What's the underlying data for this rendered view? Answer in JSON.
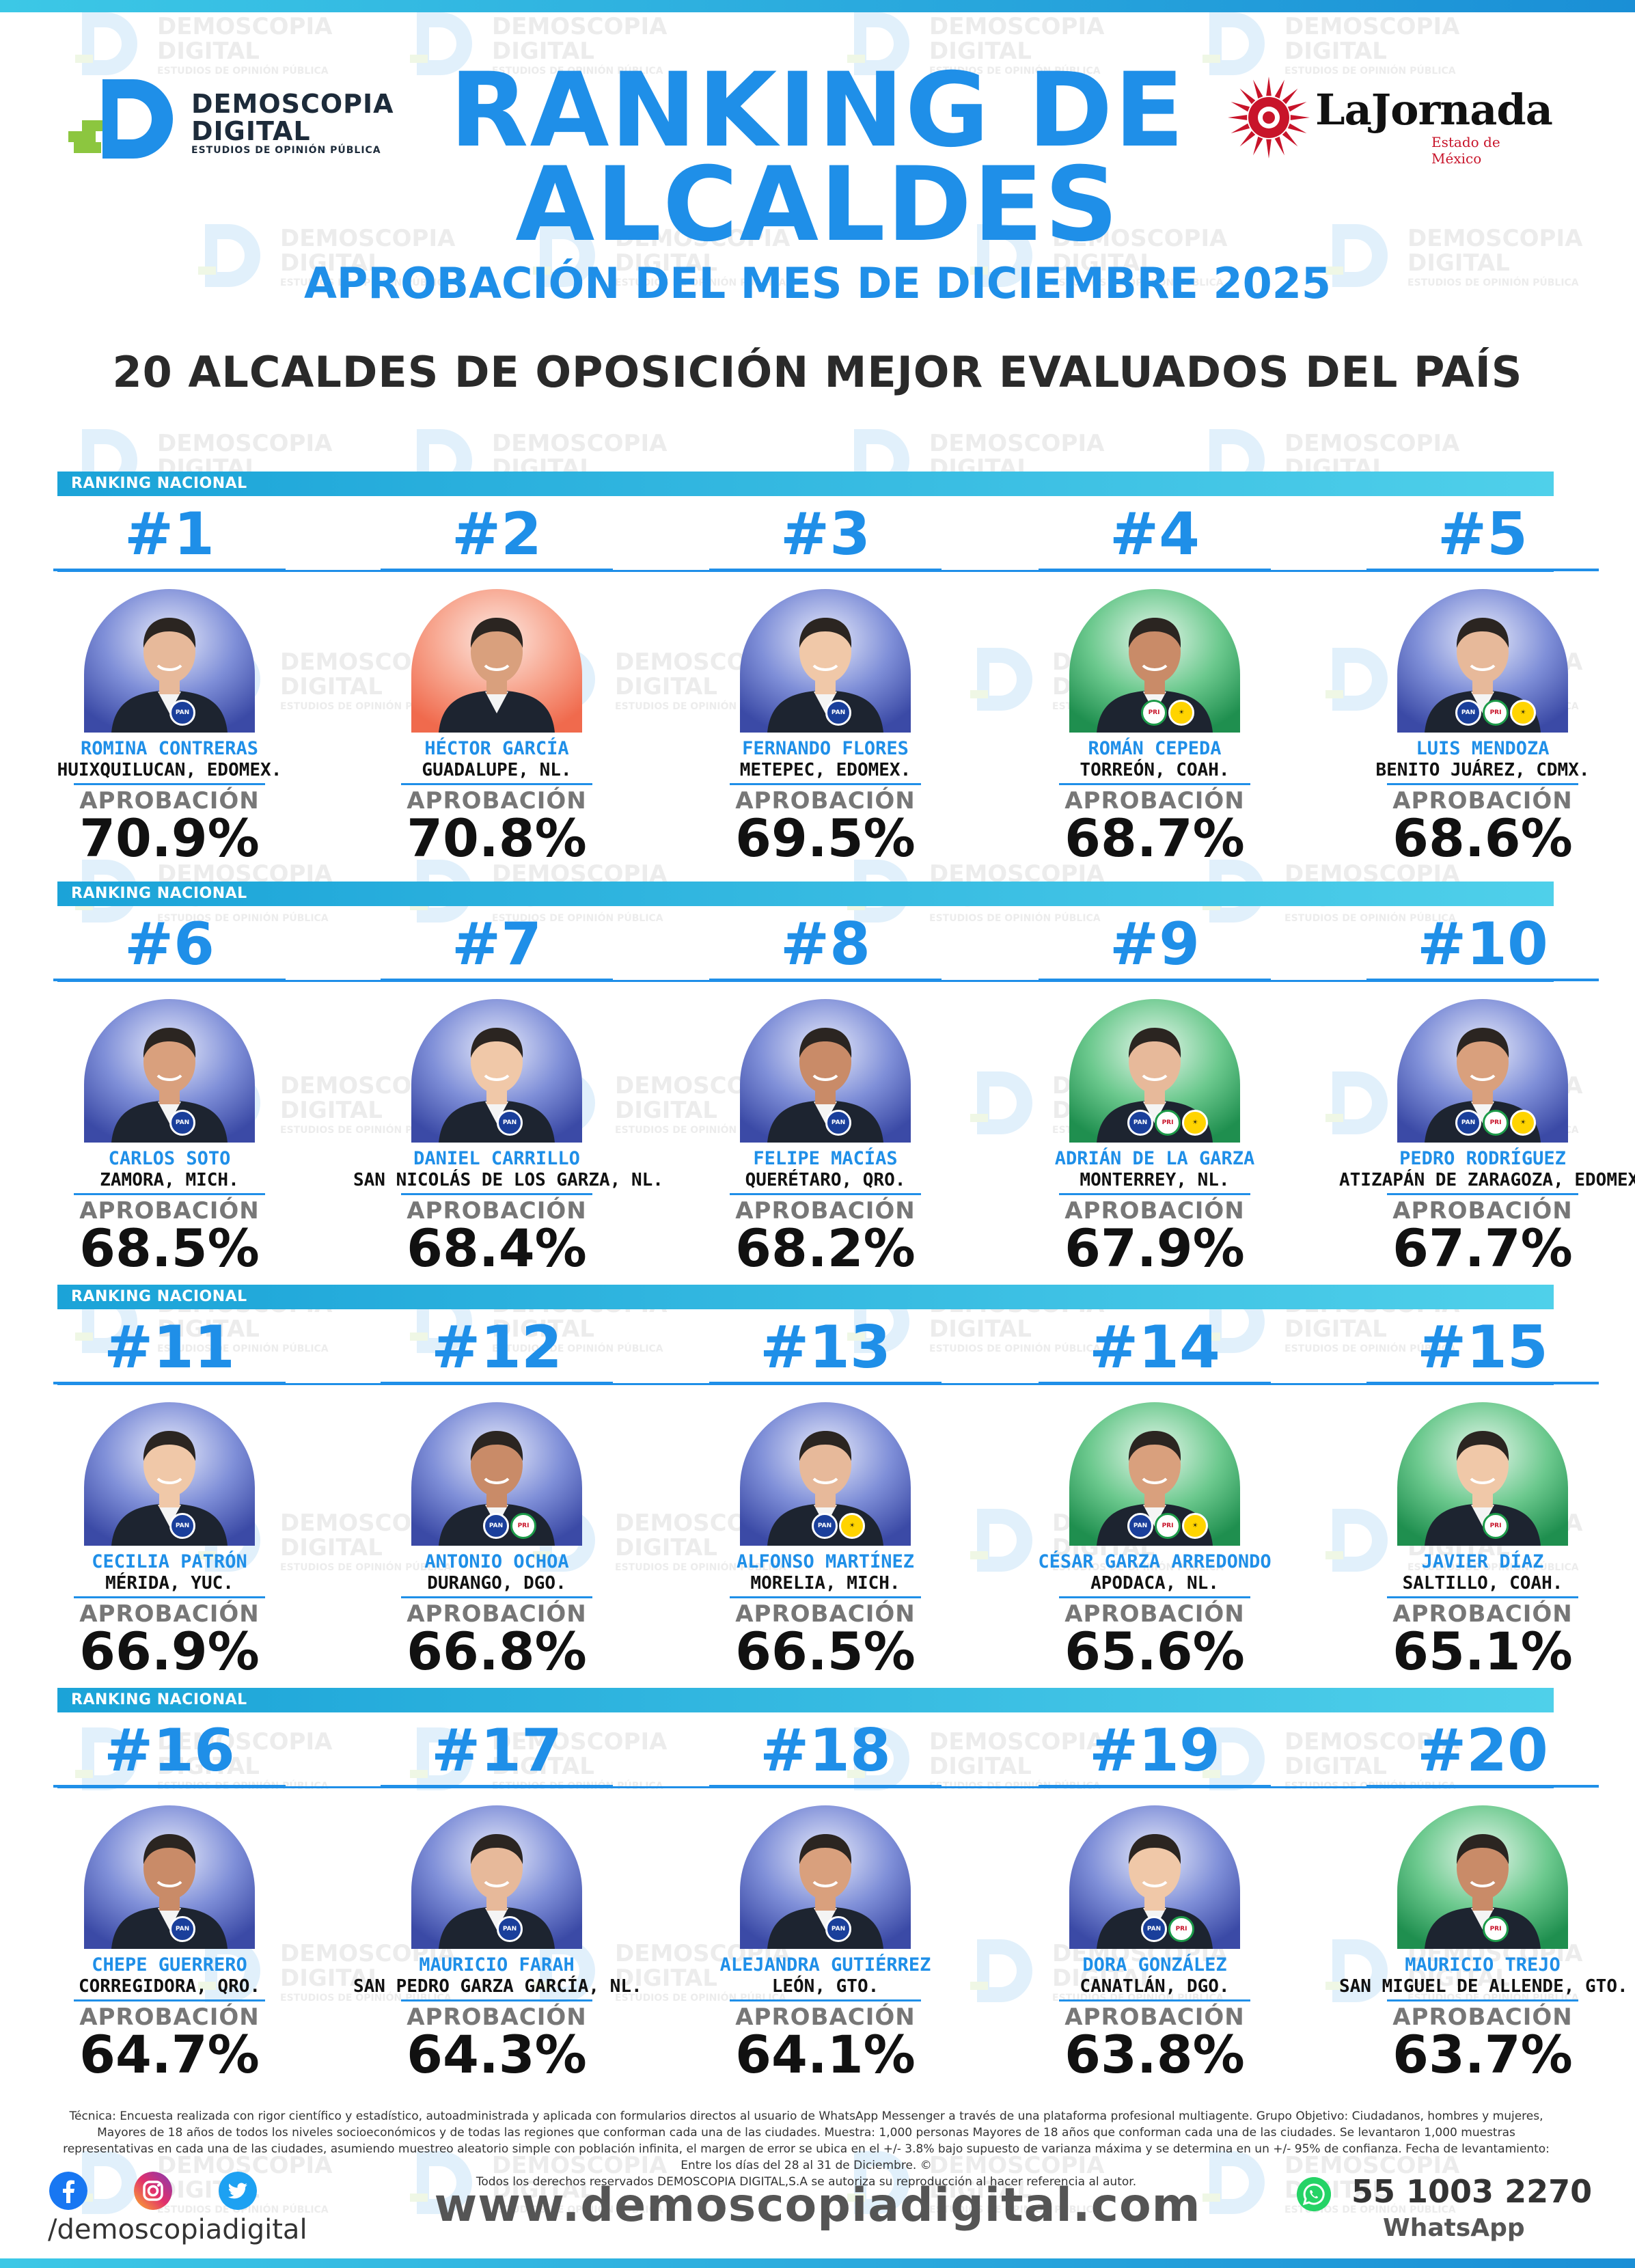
{
  "header": {
    "brand_line1": "DEMOSCOPIA",
    "brand_line2": "DIGITAL",
    "brand_line3": "ESTUDIOS DE OPINIÓN PÚBLICA",
    "title_line1": "RANKING DE",
    "title_line2": "ALCALDES",
    "subtitle": "APROBACIÓN DEL MES DE DICIEMBRE 2025",
    "headline": "20 ALCALDES DE OPOSICIÓN MEJOR EVALUADOS DEL PAÍS",
    "partner_name": "LaJornada",
    "partner_sub": "Estado de México"
  },
  "watermark": {
    "line1": "DEMOSCOPIA",
    "line2": "DIGITAL",
    "line3": "ESTUDIOS DE OPINIÓN PÚBLICA"
  },
  "section_label": "RANKING NACIONAL",
  "approval_label": "APROBACIÓN",
  "colors": {
    "accent": "#1f8fe8",
    "cyan": "#3cc8e6",
    "pan": "#1a3f9b",
    "pri_red": "#c8142a",
    "pri_green": "#1c9b49",
    "prd": "#ffd400"
  },
  "mayors": [
    {
      "rank": "#1",
      "name": "ROMINA CONTRERAS",
      "city": "HUIXQUILUCAN, EDOMEX.",
      "approval": "70.9%",
      "badges": [
        "PAN"
      ],
      "bg": "blue"
    },
    {
      "rank": "#2",
      "name": "HÉCTOR GARCÍA",
      "city": "GUADALUPE, NL.",
      "approval": "70.8%",
      "badges": [],
      "bg": "orange"
    },
    {
      "rank": "#3",
      "name": "FERNANDO FLORES",
      "city": "METEPEC, EDOMEX.",
      "approval": "69.5%",
      "badges": [
        "PAN"
      ],
      "bg": "blue"
    },
    {
      "rank": "#4",
      "name": "ROMÁN CEPEDA",
      "city": "TORREÓN, COAH.",
      "approval": "68.7%",
      "badges": [
        "PRI",
        "PRD"
      ],
      "bg": "green"
    },
    {
      "rank": "#5",
      "name": "LUIS MENDOZA",
      "city": "BENITO JUÁREZ, CDMX.",
      "approval": "68.6%",
      "badges": [
        "PAN",
        "PRI",
        "PRD"
      ],
      "bg": "blue"
    },
    {
      "rank": "#6",
      "name": "CARLOS SOTO",
      "city": "ZAMORA, MICH.",
      "approval": "68.5%",
      "badges": [
        "PAN"
      ],
      "bg": "blue"
    },
    {
      "rank": "#7",
      "name": "DANIEL CARRILLO",
      "city": "SAN NICOLÁS DE LOS GARZA, NL.",
      "approval": "68.4%",
      "badges": [
        "PAN"
      ],
      "bg": "blue"
    },
    {
      "rank": "#8",
      "name": "FELIPE MACÍAS",
      "city": "QUERÉTARO, QRO.",
      "approval": "68.2%",
      "badges": [
        "PAN"
      ],
      "bg": "blue"
    },
    {
      "rank": "#9",
      "name": "ADRIÁN DE LA GARZA",
      "city": "MONTERREY, NL.",
      "approval": "67.9%",
      "badges": [
        "PAN",
        "PRI",
        "PRD"
      ],
      "bg": "green"
    },
    {
      "rank": "#10",
      "name": "PEDRO RODRÍGUEZ",
      "city": "ATIZAPÁN DE ZARAGOZA, EDOMEX.",
      "approval": "67.7%",
      "badges": [
        "PAN",
        "PRI",
        "PRD"
      ],
      "bg": "blue"
    },
    {
      "rank": "#11",
      "name": "CECILIA PATRÓN",
      "city": "MÉRIDA, YUC.",
      "approval": "66.9%",
      "badges": [
        "PAN"
      ],
      "bg": "blue"
    },
    {
      "rank": "#12",
      "name": "ANTONIO OCHOA",
      "city": "DURANGO, DGO.",
      "approval": "66.8%",
      "badges": [
        "PAN",
        "PRI"
      ],
      "bg": "blue"
    },
    {
      "rank": "#13",
      "name": "ALFONSO MARTÍNEZ",
      "city": "MORELIA, MICH.",
      "approval": "66.5%",
      "badges": [
        "PAN",
        "PRD"
      ],
      "bg": "blue"
    },
    {
      "rank": "#14",
      "name": "CÉSAR GARZA ARREDONDO",
      "city": "APODACA, NL.",
      "approval": "65.6%",
      "badges": [
        "PAN",
        "PRI",
        "PRD"
      ],
      "bg": "green"
    },
    {
      "rank": "#15",
      "name": "JAVIER DÍAZ",
      "city": "SALTILLO, COAH.",
      "approval": "65.1%",
      "badges": [
        "PRI"
      ],
      "bg": "green"
    },
    {
      "rank": "#16",
      "name": "CHEPE GUERRERO",
      "city": "CORREGIDORA, QRO.",
      "approval": "64.7%",
      "badges": [
        "PAN"
      ],
      "bg": "blue"
    },
    {
      "rank": "#17",
      "name": "MAURICIO FARAH",
      "city": "SAN PEDRO GARZA GARCÍA, NL.",
      "approval": "64.3%",
      "badges": [
        "PAN"
      ],
      "bg": "blue"
    },
    {
      "rank": "#18",
      "name": "ALEJANDRA GUTIÉRREZ",
      "city": "LEÓN, GTO.",
      "approval": "64.1%",
      "badges": [
        "PAN"
      ],
      "bg": "blue"
    },
    {
      "rank": "#19",
      "name": "DORA GONZÁLEZ",
      "city": "CANATLÁN, DGO.",
      "approval": "63.8%",
      "badges": [
        "PAN",
        "PRI"
      ],
      "bg": "blue"
    },
    {
      "rank": "#20",
      "name": "MAURICIO TREJO",
      "city": "SAN MIGUEL DE ALLENDE, GTO.",
      "approval": "63.7%",
      "badges": [
        "PRI"
      ],
      "bg": "green"
    }
  ],
  "footer": {
    "technical_note": "Técnica: Encuesta realizada con rigor científico y estadístico, autoadministrada y aplicada con formularios directos al usuario de WhatsApp Messenger a través de una plataforma profesional multiagente. Grupo Objetivo: Ciudadanos, hombres y mujeres, Mayores de 18 años de todos los niveles socioeconómicos y de todas las regiones que conforman cada una de las ciudades. Muestra: 1,000 personas Mayores de 18 años que conforman cada una de las ciudades. Se levantaron 1,000 muestras representativas en cada una de las ciudades, asumiendo muestreo aleatorio simple con población infinita, el margen de error se ubica en el +/- 3.8% bajo supuesto de varianza máxima y se determina en un +/- 95% de confianza. Fecha de levantamiento: Entre los días del 28 al 31 de Diciembre. ©",
    "rights": "Todos los derechos reservados DEMOSCOPIA DIGITAL,S.A se autoriza su reproducción al hacer referencia al autor.",
    "handle": "/demoscopiadigital",
    "website": "www.demoscopiadigital.com",
    "phone": "55 1003 2270",
    "whatsapp_label": "WhatsApp"
  }
}
